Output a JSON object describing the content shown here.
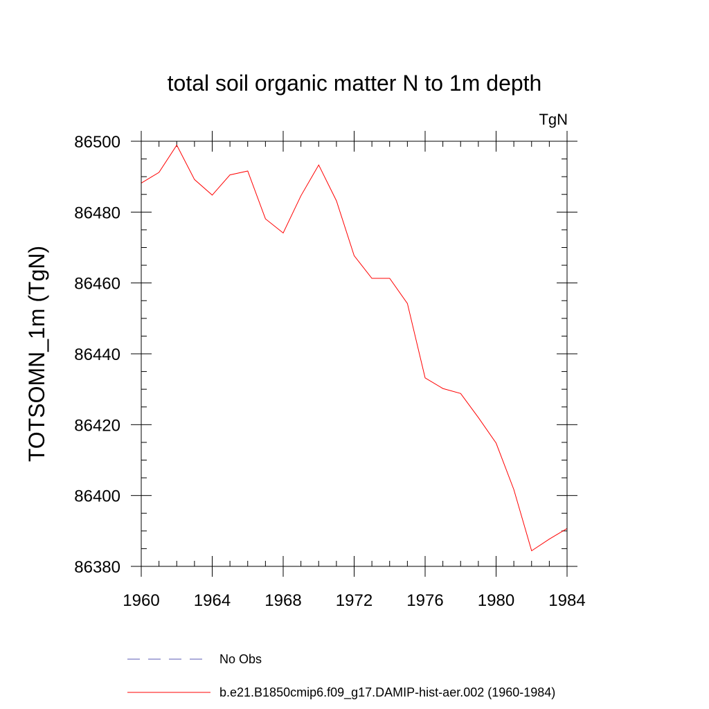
{
  "chart_data": {
    "type": "line",
    "title": "total soil organic matter N to 1m depth",
    "units": "TgN",
    "ylabel": "TOTSOMN_1m  (TgN)",
    "xlabel": "",
    "xlim": [
      1960,
      1984
    ],
    "ylim": [
      86380,
      86500
    ],
    "x_ticks": [
      1960,
      1964,
      1968,
      1972,
      1976,
      1980,
      1984
    ],
    "y_ticks": [
      86380,
      86400,
      86420,
      86440,
      86460,
      86480,
      86500
    ],
    "x_tick_labels": [
      "1960",
      "1964",
      "1968",
      "1972",
      "1976",
      "1980",
      "1984"
    ],
    "y_tick_labels": [
      "86380",
      "86400",
      "86420",
      "86440",
      "86460",
      "86480",
      "86500"
    ],
    "grid": false,
    "legend_position": "bottom",
    "series": [
      {
        "name": "No Obs",
        "color": "#5a5ab4",
        "style": "dashed",
        "x": [],
        "values": []
      },
      {
        "name": "b.e21.B1850cmip6.f09_g17.DAMIP-hist-aer.002 (1960-1984)",
        "color": "#ff0000",
        "style": "solid",
        "x": [
          1960,
          1961,
          1962,
          1963,
          1964,
          1965,
          1966,
          1967,
          1968,
          1969,
          1970,
          1971,
          1972,
          1973,
          1974,
          1975,
          1976,
          1977,
          1978,
          1979,
          1980,
          1981,
          1982,
          1983,
          1984
        ],
        "values": [
          86488.2,
          86491.2,
          86498.9,
          86489.2,
          86484.8,
          86490.5,
          86491.6,
          86478.1,
          86474.1,
          86484.6,
          86493.3,
          86483.2,
          86467.7,
          86461.3,
          86461.3,
          86454.2,
          86433.2,
          86430.2,
          86428.8,
          86422.0,
          86414.8,
          86401.7,
          86384.4,
          86387.7,
          86390.7
        ]
      }
    ]
  }
}
